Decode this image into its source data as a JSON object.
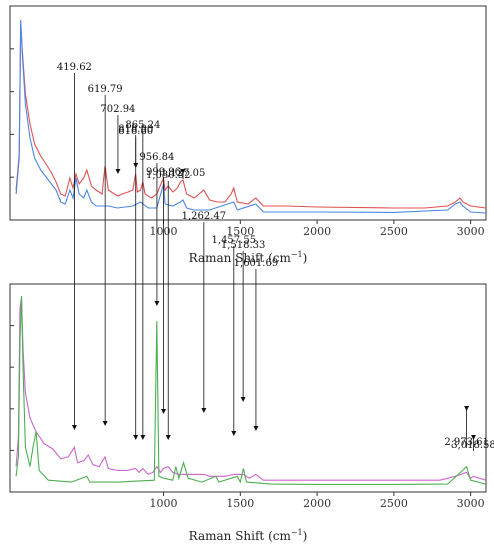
{
  "chart_data": [
    {
      "type": "line",
      "title": "",
      "xlabel": "Raman Shift (cm",
      "xlabel_sup": "−1",
      "xlabel_close": ")",
      "xlim": [
        0,
        3100
      ],
      "ylim": [
        0,
        1
      ],
      "x_ticks": [
        "1000",
        "1500",
        "2000",
        "2500",
        "3000"
      ],
      "x_tick_values": [
        1000,
        1500,
        2000,
        2500,
        3000
      ],
      "grid": false,
      "series": [
        {
          "color": "#e05252",
          "points": [
            [
              40,
              0.12
            ],
            [
              60,
              0.3
            ],
            [
              70,
              0.95
            ],
            [
              80,
              0.82
            ],
            [
              100,
              0.6
            ],
            [
              130,
              0.45
            ],
            [
              160,
              0.35
            ],
            [
              200,
              0.29
            ],
            [
              260,
              0.22
            ],
            [
              300,
              0.16
            ],
            [
              330,
              0.1
            ],
            [
              360,
              0.09
            ],
            [
              390,
              0.18
            ],
            [
              410,
              0.13
            ],
            [
              430,
              0.2
            ],
            [
              450,
              0.15
            ],
            [
              480,
              0.18
            ],
            [
              500,
              0.22
            ],
            [
              530,
              0.14
            ],
            [
              560,
              0.12
            ],
            [
              600,
              0.1
            ],
            [
              619,
              0.24
            ],
            [
              640,
              0.12
            ],
            [
              680,
              0.1
            ],
            [
              702,
              0.09
            ],
            [
              730,
              0.1
            ],
            [
              770,
              0.11
            ],
            [
              800,
              0.12
            ],
            [
              818,
              0.2
            ],
            [
              830,
              0.11
            ],
            [
              850,
              0.12
            ],
            [
              865,
              0.16
            ],
            [
              880,
              0.1
            ],
            [
              920,
              0.08
            ],
            [
              956,
              0.1
            ],
            [
              1000,
              0.18
            ],
            [
              1010,
              0.12
            ],
            [
              1030,
              0.14
            ],
            [
              1060,
              0.11
            ],
            [
              1090,
              0.13
            ],
            [
              1110,
              0.16
            ],
            [
              1127,
              0.17
            ],
            [
              1150,
              0.1
            ],
            [
              1200,
              0.08
            ],
            [
              1262,
              0.12
            ],
            [
              1300,
              0.07
            ],
            [
              1350,
              0.06
            ],
            [
              1400,
              0.06
            ],
            [
              1440,
              0.1
            ],
            [
              1457,
              0.13
            ],
            [
              1480,
              0.06
            ],
            [
              1550,
              0.05
            ],
            [
              1601,
              0.08
            ],
            [
              1650,
              0.04
            ],
            [
              1800,
              0.04
            ],
            [
              2000,
              0.035
            ],
            [
              2500,
              0.03
            ],
            [
              2700,
              0.03
            ],
            [
              2850,
              0.04
            ],
            [
              2900,
              0.06
            ],
            [
              2930,
              0.08
            ],
            [
              2950,
              0.06
            ],
            [
              3000,
              0.04
            ],
            [
              3100,
              0.03
            ]
          ]
        },
        {
          "color": "#4a86e8",
          "points": [
            [
              40,
              0.1
            ],
            [
              60,
              0.28
            ],
            [
              70,
              0.97
            ],
            [
              80,
              0.8
            ],
            [
              100,
              0.55
            ],
            [
              130,
              0.38
            ],
            [
              160,
              0.28
            ],
            [
              200,
              0.22
            ],
            [
              260,
              0.16
            ],
            [
              300,
              0.12
            ],
            [
              330,
              0.06
            ],
            [
              360,
              0.05
            ],
            [
              390,
              0.12
            ],
            [
              410,
              0.08
            ],
            [
              430,
              0.18
            ],
            [
              450,
              0.1
            ],
            [
              480,
              0.08
            ],
            [
              500,
              0.12
            ],
            [
              530,
              0.06
            ],
            [
              560,
              0.04
            ],
            [
              600,
              0.04
            ],
            [
              640,
              0.04
            ],
            [
              700,
              0.03
            ],
            [
              800,
              0.04
            ],
            [
              850,
              0.06
            ],
            [
              900,
              0.03
            ],
            [
              956,
              0.03
            ],
            [
              1000,
              0.15
            ],
            [
              1010,
              0.05
            ],
            [
              1060,
              0.04
            ],
            [
              1110,
              0.06
            ],
            [
              1127,
              0.07
            ],
            [
              1150,
              0.03
            ],
            [
              1200,
              0.02
            ],
            [
              1300,
              0.02
            ],
            [
              1457,
              0.06
            ],
            [
              1480,
              0.02
            ],
            [
              1601,
              0.05
            ],
            [
              1650,
              0.01
            ],
            [
              2000,
              0.01
            ],
            [
              2500,
              0.008
            ],
            [
              2850,
              0.02
            ],
            [
              2900,
              0.05
            ],
            [
              2930,
              0.06
            ],
            [
              2950,
              0.04
            ],
            [
              3000,
              0.01
            ],
            [
              3100,
              0.005
            ]
          ]
        }
      ],
      "annotations": [
        {
          "x": 702.94,
          "label": "702.94"
        },
        {
          "x": 818.8,
          "label": "818.80"
        },
        {
          "x": 1127.05,
          "label": "1,127.05"
        }
      ]
    },
    {
      "type": "line",
      "title": "",
      "xlabel": "Raman Shift (cm",
      "xlabel_sup": "−1",
      "xlabel_close": ")",
      "xlim": [
        0,
        3100
      ],
      "ylim": [
        0,
        1
      ],
      "x_ticks": [
        "1000",
        "1500",
        "2000",
        "2500",
        "3000"
      ],
      "x_tick_values": [
        1000,
        1500,
        2000,
        2500,
        3000
      ],
      "grid": false,
      "series": [
        {
          "color": "#cc66cc",
          "points": [
            [
              40,
              0.1
            ],
            [
              55,
              0.25
            ],
            [
              65,
              0.92
            ],
            [
              75,
              0.97
            ],
            [
              85,
              0.7
            ],
            [
              100,
              0.48
            ],
            [
              130,
              0.35
            ],
            [
              170,
              0.28
            ],
            [
              220,
              0.22
            ],
            [
              280,
              0.19
            ],
            [
              330,
              0.14
            ],
            [
              380,
              0.15
            ],
            [
              419,
              0.2
            ],
            [
              440,
              0.12
            ],
            [
              480,
              0.13
            ],
            [
              510,
              0.16
            ],
            [
              540,
              0.11
            ],
            [
              580,
              0.1
            ],
            [
              619,
              0.15
            ],
            [
              640,
              0.09
            ],
            [
              700,
              0.08
            ],
            [
              760,
              0.08
            ],
            [
              818,
              0.09
            ],
            [
              840,
              0.07
            ],
            [
              865,
              0.09
            ],
            [
              900,
              0.06
            ],
            [
              930,
              0.07
            ],
            [
              956,
              0.1
            ],
            [
              980,
              0.07
            ],
            [
              999,
              0.09
            ],
            [
              1030,
              0.1
            ],
            [
              1060,
              0.07
            ],
            [
              1100,
              0.06
            ],
            [
              1150,
              0.06
            ],
            [
              1262,
              0.06
            ],
            [
              1300,
              0.05
            ],
            [
              1400,
              0.05
            ],
            [
              1457,
              0.06
            ],
            [
              1518,
              0.06
            ],
            [
              1560,
              0.04
            ],
            [
              1601,
              0.06
            ],
            [
              1650,
              0.03
            ],
            [
              2000,
              0.03
            ],
            [
              2500,
              0.03
            ],
            [
              2800,
              0.03
            ],
            [
              2900,
              0.05
            ],
            [
              2973,
              0.07
            ],
            [
              3000,
              0.04
            ],
            [
              3018,
              0.05
            ],
            [
              3100,
              0.03
            ]
          ]
        },
        {
          "color": "#4caf50",
          "points": [
            [
              40,
              0.05
            ],
            [
              55,
              0.15
            ],
            [
              65,
              0.75
            ],
            [
              75,
              0.98
            ],
            [
              85,
              0.6
            ],
            [
              100,
              0.2
            ],
            [
              130,
              0.1
            ],
            [
              150,
              0.2
            ],
            [
              170,
              0.28
            ],
            [
              190,
              0.08
            ],
            [
              250,
              0.03
            ],
            [
              400,
              0.02
            ],
            [
              500,
              0.05
            ],
            [
              520,
              0.02
            ],
            [
              700,
              0.02
            ],
            [
              940,
              0.03
            ],
            [
              956,
              0.85
            ],
            [
              970,
              0.05
            ],
            [
              1000,
              0.04
            ],
            [
              1060,
              0.03
            ],
            [
              1080,
              0.1
            ],
            [
              1100,
              0.04
            ],
            [
              1130,
              0.12
            ],
            [
              1160,
              0.04
            ],
            [
              1250,
              0.02
            ],
            [
              1340,
              0.05
            ],
            [
              1360,
              0.02
            ],
            [
              1480,
              0.05
            ],
            [
              1500,
              0.02
            ],
            [
              1520,
              0.09
            ],
            [
              1540,
              0.02
            ],
            [
              1700,
              0.01
            ],
            [
              2000,
              0.008
            ],
            [
              2500,
              0.008
            ],
            [
              2850,
              0.01
            ],
            [
              2920,
              0.06
            ],
            [
              2973,
              0.1
            ],
            [
              3000,
              0.03
            ],
            [
              3100,
              0.01
            ]
          ]
        }
      ],
      "annotations": [
        {
          "x": 419.62,
          "label": "419.62"
        },
        {
          "x": 619.79,
          "label": "619.79"
        },
        {
          "x": 818.8,
          "label": "818.80"
        },
        {
          "x": 865.24,
          "label": "865.24"
        },
        {
          "x": 956.84,
          "label": "956.84"
        },
        {
          "x": 999.96,
          "label": "999.96"
        },
        {
          "x": 1030.52,
          "label": "1,030.52"
        },
        {
          "x": 1262.47,
          "label": "1,262.47"
        },
        {
          "x": 1457.55,
          "label": "1,457.55"
        },
        {
          "x": 1518.33,
          "label": "1,518.33"
        },
        {
          "x": 1601.69,
          "label": "1,601.69"
        },
        {
          "x": 2973.61,
          "label": "2,973.61"
        },
        {
          "x": 3018.58,
          "label": "3,018.58"
        }
      ]
    }
  ]
}
